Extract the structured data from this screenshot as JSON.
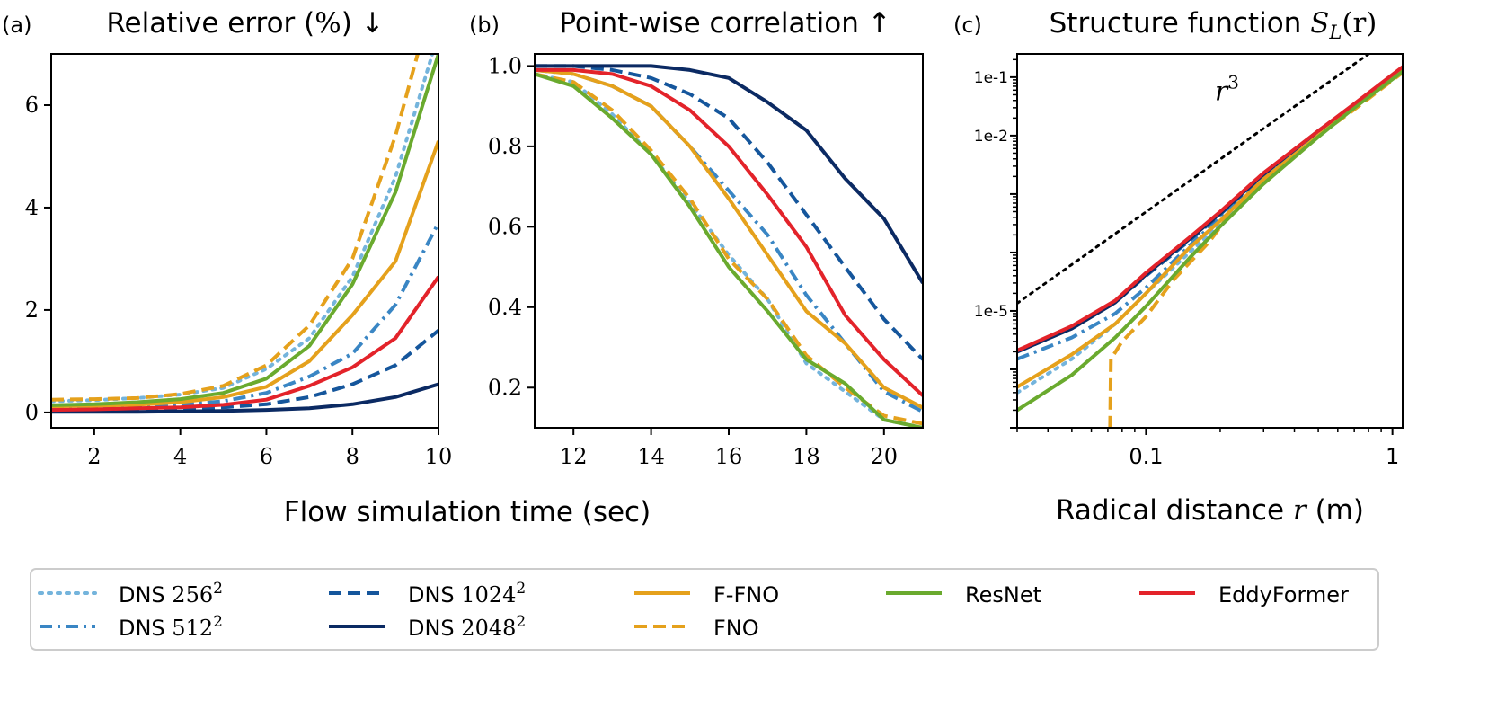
{
  "figure": {
    "xlabel_shared": "Flow simulation time (sec)"
  },
  "legend": {
    "entries": [
      {
        "key": "dns256",
        "label": "DNS 256²",
        "color": "#74b4dc",
        "dash": "dotted"
      },
      {
        "key": "dns512",
        "label": "DNS 512²",
        "color": "#3a86c4",
        "dash": "dashdot"
      },
      {
        "key": "dns1024",
        "label": "DNS 1024²",
        "color": "#15569c",
        "dash": "dashed"
      },
      {
        "key": "dns2048",
        "label": "DNS 2048²",
        "color": "#0b2a63",
        "dash": "solid"
      },
      {
        "key": "ffno",
        "label": "F-FNO",
        "color": "#e5a11c",
        "dash": "solid"
      },
      {
        "key": "fno",
        "label": "FNO",
        "color": "#e5a11c",
        "dash": "dashed"
      },
      {
        "key": "resnet",
        "label": "ResNet",
        "color": "#6aaa2e",
        "dash": "solid"
      },
      {
        "key": "eddy",
        "label": "EddyFormer",
        "color": "#e3232a",
        "dash": "solid"
      }
    ]
  },
  "chart_data": [
    {
      "id": "a",
      "panel_label": "(a)",
      "type": "line",
      "title": "Relative error (%) ↓",
      "xlabel": "",
      "ylabel": "",
      "xlim": [
        1,
        10
      ],
      "ylim": [
        -0.3,
        7
      ],
      "xticks": [
        2,
        4,
        6,
        8,
        10
      ],
      "yticks": [
        0,
        2,
        4,
        6
      ],
      "x": [
        1,
        2,
        3,
        4,
        5,
        6,
        7,
        8,
        9,
        10
      ],
      "series": [
        {
          "key": "dns256",
          "values": [
            0.22,
            0.24,
            0.28,
            0.35,
            0.48,
            0.85,
            1.45,
            2.65,
            4.6,
            7.4
          ]
        },
        {
          "key": "dns512",
          "values": [
            0.08,
            0.09,
            0.11,
            0.15,
            0.22,
            0.38,
            0.7,
            1.15,
            2.1,
            3.7
          ]
        },
        {
          "key": "dns1024",
          "values": [
            0.03,
            0.04,
            0.05,
            0.07,
            0.1,
            0.16,
            0.3,
            0.55,
            0.92,
            1.6
          ]
        },
        {
          "key": "dns2048",
          "values": [
            0.01,
            0.01,
            0.01,
            0.02,
            0.03,
            0.05,
            0.08,
            0.16,
            0.3,
            0.55
          ]
        },
        {
          "key": "ffno",
          "values": [
            0.12,
            0.13,
            0.15,
            0.2,
            0.3,
            0.5,
            1.0,
            1.9,
            2.95,
            5.3
          ]
        },
        {
          "key": "fno",
          "values": [
            0.25,
            0.26,
            0.28,
            0.36,
            0.52,
            0.92,
            1.7,
            3.0,
            5.4,
            8.5
          ]
        },
        {
          "key": "resnet",
          "values": [
            0.14,
            0.16,
            0.2,
            0.26,
            0.38,
            0.66,
            1.3,
            2.5,
            4.3,
            7.0
          ]
        },
        {
          "key": "eddy",
          "values": [
            0.05,
            0.06,
            0.08,
            0.1,
            0.15,
            0.25,
            0.52,
            0.88,
            1.45,
            2.65
          ]
        }
      ]
    },
    {
      "id": "b",
      "panel_label": "(b)",
      "type": "line",
      "title": "Point-wise correlation ↑",
      "xlabel": "",
      "ylabel": "",
      "xlim": [
        11,
        21
      ],
      "ylim": [
        0.1,
        1.03
      ],
      "xticks": [
        12,
        14,
        16,
        18,
        20
      ],
      "yticks": [
        0.2,
        0.4,
        0.6,
        0.8,
        1.0
      ],
      "ytick_labels": [
        "0.2",
        "0.4",
        "0.6",
        "0.8",
        "1.0"
      ],
      "x": [
        11,
        12,
        13,
        14,
        15,
        16,
        17,
        18,
        19,
        20,
        21
      ],
      "series": [
        {
          "key": "dns256",
          "values": [
            0.98,
            0.96,
            0.88,
            0.78,
            0.66,
            0.53,
            0.42,
            0.26,
            0.19,
            0.12,
            0.1
          ]
        },
        {
          "key": "dns512",
          "values": [
            0.99,
            0.98,
            0.95,
            0.9,
            0.8,
            0.69,
            0.58,
            0.43,
            0.31,
            0.19,
            0.14
          ]
        },
        {
          "key": "dns1024",
          "values": [
            1.0,
            1.0,
            0.99,
            0.97,
            0.93,
            0.87,
            0.76,
            0.63,
            0.5,
            0.37,
            0.27
          ]
        },
        {
          "key": "dns2048",
          "values": [
            1.0,
            1.0,
            1.0,
            1.0,
            0.99,
            0.97,
            0.91,
            0.84,
            0.72,
            0.62,
            0.46
          ]
        },
        {
          "key": "ffno",
          "values": [
            0.99,
            0.98,
            0.95,
            0.9,
            0.8,
            0.67,
            0.53,
            0.39,
            0.31,
            0.2,
            0.15
          ]
        },
        {
          "key": "fno",
          "values": [
            0.98,
            0.96,
            0.89,
            0.79,
            0.67,
            0.52,
            0.42,
            0.28,
            0.2,
            0.13,
            0.11
          ]
        },
        {
          "key": "resnet",
          "values": [
            0.98,
            0.95,
            0.87,
            0.78,
            0.65,
            0.5,
            0.39,
            0.27,
            0.21,
            0.12,
            0.1
          ]
        },
        {
          "key": "eddy",
          "values": [
            0.99,
            0.99,
            0.98,
            0.95,
            0.89,
            0.8,
            0.68,
            0.55,
            0.38,
            0.27,
            0.18
          ]
        }
      ]
    },
    {
      "id": "c",
      "panel_label": "(c)",
      "type": "line",
      "scale": "loglog",
      "title": "Structure function S_L(r)",
      "title_text": "Structure function ",
      "title_math_base": "S",
      "title_math_sub": "L",
      "title_math_arg": "(r)",
      "xlabel": "Radical distance r (m)",
      "xlabel_text": "Radical distance ",
      "xlabel_math": "r",
      "xlabel_unit": " (m)",
      "ylabel": "",
      "xlim": [
        0.03,
        1.1
      ],
      "ylim": [
        1e-07,
        0.25
      ],
      "xticks": [
        0.1,
        1
      ],
      "xtick_labels": [
        "0.1",
        "1"
      ],
      "yticks": [
        1e-05,
        0.01,
        0.1
      ],
      "ytick_labels": [
        "1e-5",
        "1e-2",
        "1e-1"
      ],
      "annotation": {
        "text": "r",
        "superscript": "3",
        "x": 0.19,
        "y": 0.04
      },
      "reference": {
        "key": "r3",
        "label": "r³",
        "x": [
          0.03,
          0.8
        ],
        "values": [
          1.35e-05,
          0.25
        ],
        "color": "#000000",
        "dash": "dotted"
      },
      "x": [
        0.03,
        0.05,
        0.075,
        0.1,
        0.15,
        0.2,
        0.3,
        0.5,
        0.7,
        1.1
      ],
      "series": [
        {
          "key": "dns256",
          "values": [
            4e-07,
            1.5e-06,
            6e-06,
            2e-05,
            0.0001,
            0.0003,
            0.0016,
            0.01,
            0.03,
            0.13
          ]
        },
        {
          "key": "dns512",
          "values": [
            1.5e-06,
            3.5e-06,
            9e-06,
            2.5e-05,
            0.00013,
            0.0004,
            0.002,
            0.011,
            0.032,
            0.135
          ]
        },
        {
          "key": "dns1024",
          "values": [
            2e-06,
            5e-06,
            1.4e-05,
            4e-05,
            0.00016,
            0.00045,
            0.0021,
            0.0115,
            0.033,
            0.14
          ]
        },
        {
          "key": "dns2048",
          "values": [
            2e-06,
            5e-06,
            1.4e-05,
            4.2e-05,
            0.00017,
            0.00047,
            0.0022,
            0.012,
            0.034,
            0.145
          ]
        },
        {
          "key": "ffno",
          "values": [
            5e-07,
            1.8e-06,
            6e-06,
            2e-05,
            0.00012,
            0.00035,
            0.0018,
            0.01,
            0.03,
            0.13
          ]
        },
        {
          "key": "fno",
          "values": [
            1e-07,
            1e-07,
            1e-07,
            1.5e-06,
            3e-06,
            8e-06,
            3.5e-05,
            0.00015,
            0.0006,
            0.0015,
            0.01,
            0.028,
            0.12
          ],
          "x": [
            0.071,
            0.0712,
            0.0715,
            0.072,
            0.08,
            0.1,
            0.13,
            0.18,
            0.23,
            0.3,
            0.5,
            0.7,
            1.1
          ]
        },
        {
          "key": "resnet",
          "values": [
            2e-07,
            8e-07,
            3.5e-06,
            1.2e-05,
            8e-05,
            0.00028,
            0.0015,
            0.0095,
            0.03,
            0.125
          ]
        },
        {
          "key": "eddy",
          "values": [
            2.1e-06,
            5.5e-06,
            1.5e-05,
            4.5e-05,
            0.00018,
            0.0005,
            0.0023,
            0.012,
            0.035,
            0.15
          ]
        }
      ]
    }
  ]
}
